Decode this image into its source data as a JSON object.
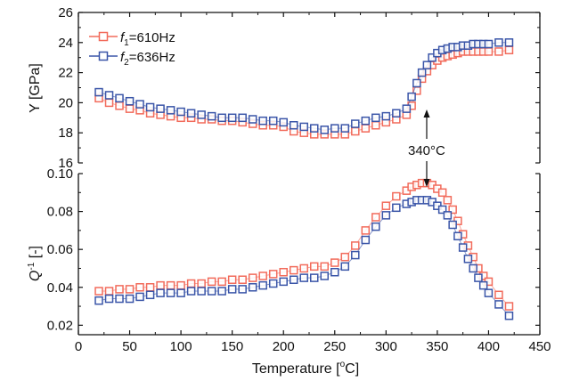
{
  "chart_data": [
    {
      "type": "scatter",
      "ylabel": "Y [GPa]",
      "ylim": [
        16,
        26
      ],
      "yticks": [
        "16",
        "18",
        "20",
        "22",
        "24",
        "26"
      ],
      "xlim": [
        0,
        450
      ],
      "series": [
        {
          "name": "f1=610Hz",
          "legend": {
            "italic": "f",
            "sub": "1",
            "rest": "=610Hz"
          },
          "color": "#f26b5b",
          "x": [
            20,
            30,
            40,
            50,
            60,
            70,
            80,
            90,
            100,
            110,
            120,
            130,
            140,
            150,
            160,
            170,
            180,
            190,
            200,
            210,
            220,
            230,
            240,
            250,
            260,
            270,
            280,
            290,
            300,
            310,
            320,
            325,
            330,
            335,
            340,
            345,
            350,
            355,
            360,
            365,
            370,
            375,
            380,
            385,
            390,
            395,
            400,
            410,
            420
          ],
          "y": [
            20.3,
            20.0,
            19.8,
            19.6,
            19.5,
            19.3,
            19.2,
            19.1,
            19.0,
            19.0,
            18.9,
            18.9,
            18.8,
            18.8,
            18.7,
            18.6,
            18.5,
            18.5,
            18.4,
            18.1,
            18.0,
            17.9,
            17.9,
            17.9,
            17.9,
            18.1,
            18.3,
            18.5,
            18.7,
            18.9,
            19.2,
            19.8,
            20.8,
            21.6,
            22.1,
            22.5,
            22.8,
            23.0,
            23.1,
            23.2,
            23.3,
            23.4,
            23.4,
            23.4,
            23.4,
            23.4,
            23.4,
            23.4,
            23.5
          ]
        },
        {
          "name": "f2=636Hz",
          "legend": {
            "italic": "f",
            "sub": "2",
            "rest": "=636Hz"
          },
          "color": "#3a55a8",
          "x": [
            20,
            30,
            40,
            50,
            60,
            70,
            80,
            90,
            100,
            110,
            120,
            130,
            140,
            150,
            160,
            170,
            180,
            190,
            200,
            210,
            220,
            230,
            240,
            250,
            260,
            270,
            280,
            290,
            300,
            310,
            320,
            325,
            330,
            335,
            340,
            345,
            350,
            355,
            360,
            365,
            370,
            375,
            380,
            385,
            390,
            395,
            400,
            410,
            420
          ],
          "y": [
            20.7,
            20.5,
            20.3,
            20.1,
            19.9,
            19.7,
            19.6,
            19.5,
            19.4,
            19.3,
            19.2,
            19.1,
            19.0,
            19.0,
            19.0,
            18.9,
            18.8,
            18.8,
            18.7,
            18.5,
            18.4,
            18.3,
            18.2,
            18.3,
            18.3,
            18.6,
            18.8,
            19.0,
            19.1,
            19.3,
            19.6,
            20.4,
            21.3,
            22.0,
            22.5,
            23.0,
            23.3,
            23.5,
            23.6,
            23.7,
            23.7,
            23.8,
            23.8,
            23.9,
            23.9,
            23.9,
            23.9,
            24.0,
            24.0
          ]
        }
      ],
      "annotation": {
        "text": "340°C",
        "x": 340
      }
    },
    {
      "type": "scatter",
      "ylabel": "Q⁻¹ [-]",
      "ylabel_parts": {
        "italic": "Q",
        "sup": "-1",
        "rest": " [-]"
      },
      "ylim": [
        0.015,
        0.1
      ],
      "yticks": [
        "0.02",
        "0.04",
        "0.06",
        "0.08",
        "0.10"
      ],
      "xlabel": "Temperature  [°C]",
      "xlabel_parts": {
        "main": "Temperature  [",
        "sup": "o",
        "rest": "C]"
      },
      "xlim": [
        0,
        450
      ],
      "xticks": [
        "0",
        "50",
        "100",
        "150",
        "200",
        "250",
        "300",
        "350",
        "400",
        "450"
      ],
      "series": [
        {
          "name": "f1=610Hz",
          "color": "#f26b5b",
          "x": [
            20,
            30,
            40,
            50,
            60,
            70,
            80,
            90,
            100,
            110,
            120,
            130,
            140,
            150,
            160,
            170,
            180,
            190,
            200,
            210,
            220,
            230,
            240,
            250,
            260,
            270,
            280,
            290,
            300,
            310,
            320,
            325,
            330,
            335,
            340,
            345,
            350,
            355,
            360,
            365,
            370,
            375,
            380,
            385,
            390,
            395,
            400,
            410,
            420
          ],
          "y": [
            0.038,
            0.038,
            0.039,
            0.039,
            0.04,
            0.04,
            0.041,
            0.041,
            0.041,
            0.042,
            0.042,
            0.043,
            0.043,
            0.044,
            0.044,
            0.045,
            0.046,
            0.047,
            0.048,
            0.049,
            0.05,
            0.051,
            0.051,
            0.053,
            0.056,
            0.062,
            0.07,
            0.077,
            0.083,
            0.088,
            0.091,
            0.093,
            0.094,
            0.095,
            0.095,
            0.094,
            0.092,
            0.09,
            0.086,
            0.081,
            0.075,
            0.068,
            0.062,
            0.056,
            0.05,
            0.046,
            0.043,
            0.036,
            0.03
          ]
        },
        {
          "name": "f2=636Hz",
          "color": "#3a55a8",
          "x": [
            20,
            30,
            40,
            50,
            60,
            70,
            80,
            90,
            100,
            110,
            120,
            130,
            140,
            150,
            160,
            170,
            180,
            190,
            200,
            210,
            220,
            230,
            240,
            250,
            260,
            270,
            280,
            290,
            300,
            310,
            320,
            325,
            330,
            335,
            340,
            345,
            350,
            355,
            360,
            365,
            370,
            375,
            380,
            385,
            390,
            395,
            400,
            410,
            420
          ],
          "y": [
            0.033,
            0.034,
            0.034,
            0.034,
            0.035,
            0.036,
            0.037,
            0.037,
            0.037,
            0.038,
            0.038,
            0.038,
            0.038,
            0.039,
            0.039,
            0.04,
            0.041,
            0.042,
            0.043,
            0.044,
            0.045,
            0.045,
            0.046,
            0.048,
            0.051,
            0.057,
            0.065,
            0.072,
            0.078,
            0.082,
            0.084,
            0.085,
            0.086,
            0.086,
            0.086,
            0.085,
            0.083,
            0.081,
            0.078,
            0.073,
            0.067,
            0.061,
            0.055,
            0.05,
            0.045,
            0.041,
            0.037,
            0.031,
            0.025
          ]
        }
      ]
    }
  ]
}
